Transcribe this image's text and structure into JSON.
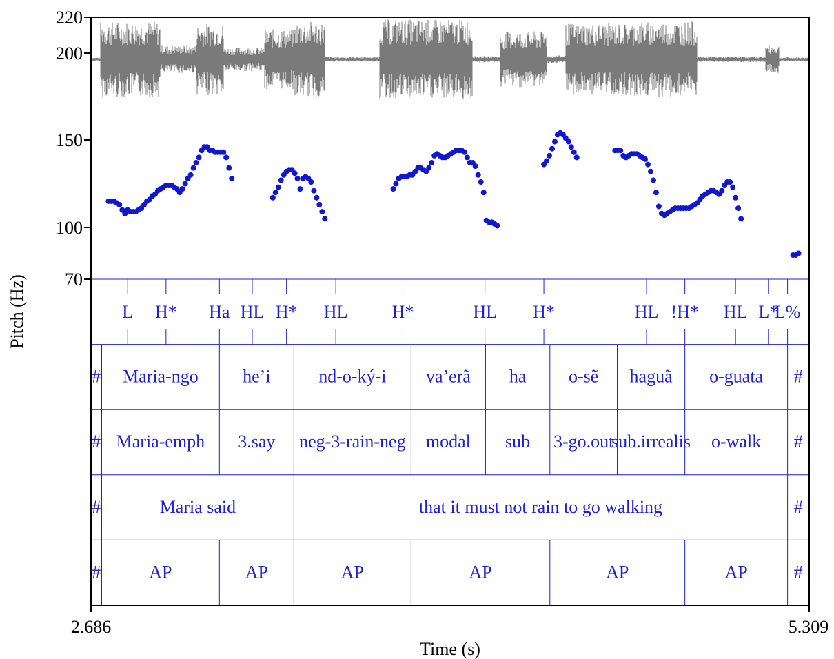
{
  "chart_data": {
    "type": "line",
    "xlabel": "Time (s)",
    "ylabel": "Pitch (Hz)",
    "xlim": [
      2.686,
      5.309
    ],
    "ylim": [
      70,
      220
    ],
    "x_tick_labels": [
      "2.686",
      "5.309"
    ],
    "y_ticks": [
      70,
      100,
      150,
      200,
      220
    ],
    "colors": {
      "pitch": "#0f17cf",
      "waveform": "#7a7a7a",
      "tiers": "#1f1fd6",
      "axes": "#000000"
    },
    "waveform_segments": [
      {
        "start": 2.686,
        "end": 2.72,
        "amplitude": 0.05
      },
      {
        "start": 2.72,
        "end": 2.94,
        "amplitude": 0.95
      },
      {
        "start": 2.94,
        "end": 3.07,
        "amplitude": 0.35
      },
      {
        "start": 3.07,
        "end": 3.17,
        "amplitude": 0.9
      },
      {
        "start": 3.17,
        "end": 3.32,
        "amplitude": 0.3
      },
      {
        "start": 3.32,
        "end": 3.43,
        "amplitude": 0.75
      },
      {
        "start": 3.43,
        "end": 3.54,
        "amplitude": 0.95
      },
      {
        "start": 3.54,
        "end": 3.74,
        "amplitude": 0.06
      },
      {
        "start": 3.74,
        "end": 4.08,
        "amplitude": 1.0
      },
      {
        "start": 4.08,
        "end": 4.18,
        "amplitude": 0.08
      },
      {
        "start": 4.18,
        "end": 4.35,
        "amplitude": 0.7
      },
      {
        "start": 4.35,
        "end": 4.42,
        "amplitude": 0.1
      },
      {
        "start": 4.42,
        "end": 4.66,
        "amplitude": 0.9
      },
      {
        "start": 4.66,
        "end": 4.9,
        "amplitude": 0.95
      },
      {
        "start": 4.9,
        "end": 5.15,
        "amplitude": 0.07
      },
      {
        "start": 5.15,
        "end": 5.2,
        "amplitude": 0.35
      },
      {
        "start": 5.2,
        "end": 5.309,
        "amplitude": 0.05
      }
    ],
    "series": [
      {
        "type": "scatter",
        "points": [
          [
            2.75,
            115
          ],
          [
            2.76,
            115
          ],
          [
            2.77,
            115
          ],
          [
            2.78,
            114
          ],
          [
            2.79,
            113
          ],
          [
            2.8,
            110
          ],
          [
            2.81,
            108
          ],
          [
            2.82,
            110
          ],
          [
            2.83,
            109
          ],
          [
            2.84,
            109
          ],
          [
            2.85,
            109
          ],
          [
            2.86,
            110
          ],
          [
            2.87,
            111
          ],
          [
            2.88,
            113
          ],
          [
            2.89,
            115
          ],
          [
            2.9,
            116
          ],
          [
            2.91,
            118
          ],
          [
            2.92,
            119
          ],
          [
            2.93,
            121
          ],
          [
            2.94,
            122
          ],
          [
            2.95,
            123
          ],
          [
            2.96,
            124
          ],
          [
            2.97,
            124
          ],
          [
            2.98,
            124
          ],
          [
            2.99,
            123
          ],
          [
            3.0,
            122
          ],
          [
            3.01,
            120
          ],
          [
            3.02,
            122
          ],
          [
            3.03,
            125
          ],
          [
            3.04,
            128
          ],
          [
            3.05,
            130
          ],
          [
            3.06,
            134
          ],
          [
            3.07,
            137
          ],
          [
            3.08,
            140
          ],
          [
            3.09,
            144
          ],
          [
            3.1,
            146
          ],
          [
            3.11,
            146
          ],
          [
            3.12,
            144
          ],
          [
            3.13,
            144
          ],
          [
            3.14,
            143
          ],
          [
            3.15,
            143
          ],
          [
            3.16,
            143
          ],
          [
            3.17,
            143
          ],
          [
            3.18,
            140
          ],
          [
            3.19,
            134
          ],
          [
            3.2,
            128
          ],
          [
            3.35,
            117
          ],
          [
            3.36,
            120
          ],
          [
            3.37,
            123
          ],
          [
            3.38,
            127
          ],
          [
            3.39,
            130
          ],
          [
            3.4,
            132
          ],
          [
            3.41,
            133
          ],
          [
            3.42,
            133
          ],
          [
            3.43,
            131
          ],
          [
            3.44,
            128
          ],
          [
            3.45,
            122
          ],
          [
            3.46,
            128
          ],
          [
            3.47,
            129
          ],
          [
            3.48,
            128
          ],
          [
            3.49,
            126
          ],
          [
            3.5,
            121
          ],
          [
            3.51,
            117
          ],
          [
            3.52,
            113
          ],
          [
            3.53,
            109
          ],
          [
            3.54,
            105
          ],
          [
            3.79,
            122
          ],
          [
            3.8,
            125
          ],
          [
            3.81,
            128
          ],
          [
            3.82,
            129
          ],
          [
            3.83,
            129
          ],
          [
            3.84,
            129
          ],
          [
            3.85,
            130
          ],
          [
            3.86,
            130
          ],
          [
            3.87,
            132
          ],
          [
            3.88,
            134
          ],
          [
            3.89,
            134
          ],
          [
            3.9,
            133
          ],
          [
            3.91,
            132
          ],
          [
            3.92,
            134
          ],
          [
            3.93,
            137
          ],
          [
            3.94,
            141
          ],
          [
            3.95,
            142
          ],
          [
            3.96,
            141
          ],
          [
            3.97,
            140
          ],
          [
            3.98,
            140
          ],
          [
            3.99,
            141
          ],
          [
            4.0,
            142
          ],
          [
            4.01,
            143
          ],
          [
            4.02,
            144
          ],
          [
            4.03,
            144
          ],
          [
            4.04,
            144
          ],
          [
            4.05,
            143
          ],
          [
            4.06,
            140
          ],
          [
            4.07,
            137
          ],
          [
            4.08,
            137
          ],
          [
            4.09,
            135
          ],
          [
            4.1,
            130
          ],
          [
            4.11,
            126
          ],
          [
            4.12,
            120
          ],
          [
            4.13,
            104
          ],
          [
            4.14,
            103
          ],
          [
            4.15,
            103
          ],
          [
            4.16,
            102
          ],
          [
            4.17,
            101
          ],
          [
            4.34,
            136
          ],
          [
            4.35,
            138
          ],
          [
            4.36,
            141
          ],
          [
            4.37,
            145
          ],
          [
            4.38,
            149
          ],
          [
            4.39,
            153
          ],
          [
            4.4,
            154
          ],
          [
            4.41,
            153
          ],
          [
            4.42,
            151
          ],
          [
            4.43,
            149
          ],
          [
            4.44,
            146
          ],
          [
            4.45,
            143
          ],
          [
            4.46,
            140
          ],
          [
            4.6,
            144
          ],
          [
            4.61,
            144
          ],
          [
            4.62,
            144
          ],
          [
            4.63,
            141
          ],
          [
            4.64,
            140
          ],
          [
            4.65,
            141
          ],
          [
            4.66,
            142
          ],
          [
            4.67,
            142
          ],
          [
            4.68,
            142
          ],
          [
            4.69,
            141
          ],
          [
            4.7,
            140
          ],
          [
            4.71,
            139
          ],
          [
            4.72,
            136
          ],
          [
            4.73,
            132
          ],
          [
            4.74,
            127
          ],
          [
            4.75,
            120
          ],
          [
            4.76,
            112
          ],
          [
            4.77,
            108
          ],
          [
            4.78,
            107
          ],
          [
            4.79,
            108
          ],
          [
            4.8,
            109
          ],
          [
            4.81,
            110
          ],
          [
            4.82,
            111
          ],
          [
            4.83,
            111
          ],
          [
            4.84,
            111
          ],
          [
            4.85,
            111
          ],
          [
            4.86,
            111
          ],
          [
            4.87,
            111
          ],
          [
            4.88,
            112
          ],
          [
            4.89,
            113
          ],
          [
            4.9,
            114
          ],
          [
            4.91,
            116
          ],
          [
            4.92,
            118
          ],
          [
            4.93,
            119
          ],
          [
            4.94,
            120
          ],
          [
            4.95,
            121
          ],
          [
            4.96,
            121
          ],
          [
            4.97,
            120
          ],
          [
            4.98,
            119
          ],
          [
            4.99,
            121
          ],
          [
            5.0,
            124
          ],
          [
            5.01,
            126
          ],
          [
            5.02,
            126
          ],
          [
            5.03,
            123
          ],
          [
            5.04,
            117
          ],
          [
            5.05,
            111
          ],
          [
            5.06,
            105
          ],
          [
            5.25,
            84
          ],
          [
            5.26,
            84
          ],
          [
            5.27,
            85
          ]
        ]
      }
    ],
    "tiers": [
      {
        "boundaries": [
          2.82,
          2.96,
          3.155,
          3.275,
          3.4,
          3.58,
          3.825,
          4.125,
          4.34,
          4.715,
          4.855,
          5.04,
          5.16,
          5.23
        ],
        "labels": [
          {
            "text": "L",
            "t": 2.82
          },
          {
            "text": "H*",
            "t": 2.96
          },
          {
            "text": "Ha",
            "t": 3.155
          },
          {
            "text": "HL",
            "t": 3.275
          },
          {
            "text": "H*",
            "t": 3.4
          },
          {
            "text": "HL",
            "t": 3.58
          },
          {
            "text": "H*",
            "t": 3.825
          },
          {
            "text": "HL",
            "t": 4.125
          },
          {
            "text": "H*",
            "t": 4.34
          },
          {
            "text": "HL",
            "t": 4.715
          },
          {
            "text": "!H*",
            "t": 4.855
          },
          {
            "text": "HL",
            "t": 5.04
          },
          {
            "text": "L*",
            "t": 5.16
          },
          {
            "text": "L%",
            "t": 5.23
          }
        ]
      },
      {
        "boundaries": [
          2.725,
          3.155,
          3.427,
          3.855,
          4.127,
          4.362,
          4.608,
          4.855,
          5.23
        ],
        "labels": [
          "#",
          "Maria-ngo",
          "he’i",
          "nd-o-ký-i",
          "va’erã",
          "ha",
          "o-sẽ",
          "haguã",
          "o-guata",
          "#"
        ]
      },
      {
        "boundaries": [
          2.725,
          3.155,
          3.427,
          3.855,
          4.127,
          4.362,
          4.608,
          4.855,
          5.23
        ],
        "labels": [
          "#",
          "Maria-emph",
          "3.say",
          "neg-3-rain-neg",
          "modal",
          "sub",
          "3-go.out",
          "sub.irrealis",
          "o-walk",
          "#"
        ]
      },
      {
        "boundaries": [
          2.725,
          3.427,
          5.23
        ],
        "labels": [
          "#",
          "Maria said",
          "that it must not rain to go walking",
          "#"
        ]
      },
      {
        "boundaries": [
          2.725,
          3.155,
          3.427,
          3.855,
          4.362,
          4.855,
          5.23
        ],
        "labels": [
          "#",
          "AP",
          "AP",
          "AP",
          "AP",
          "AP",
          "AP",
          "#"
        ]
      }
    ]
  }
}
